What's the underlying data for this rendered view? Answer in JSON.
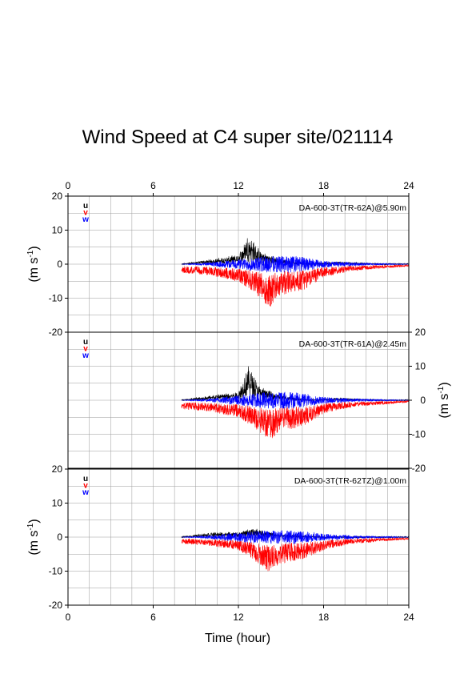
{
  "chart_data": {
    "type": "line",
    "title": "Wind Speed at C4 super site/021114",
    "xlabel": "Time (hour)",
    "xlim": [
      0,
      24
    ],
    "x_ticks": [
      "0",
      "6",
      "12",
      "18",
      "24"
    ],
    "y_ticks": [
      "20",
      "10",
      "0",
      "-10",
      "-20"
    ],
    "ylabel": "(m s-1)",
    "ylabel_main": "(m s",
    "ylabel_sup": "-1",
    "ylabel_close": ")",
    "ylim": [
      -20,
      20
    ],
    "grid": true,
    "legend_position": "top-left",
    "series_names": [
      "u",
      "v",
      "w"
    ],
    "series_colors": {
      "u": "#000000",
      "v": "#ff0000",
      "w": "#0000ff"
    },
    "data_start_hour": 8,
    "panels": [
      {
        "label": "DA-600-3T(TR-62A)@5.90m",
        "y_axis_side": "left",
        "series": [
          {
            "name": "u",
            "x": [
              8,
              10,
              12,
              12.7,
              13.5,
              15,
              17,
              19,
              22,
              24
            ],
            "values": [
              0,
              1,
              2,
              7,
              3,
              1,
              0,
              0.5,
              0,
              0
            ]
          },
          {
            "name": "v",
            "x": [
              8,
              10,
              12,
              13,
              14.2,
              15,
              16.5,
              18,
              20,
              24
            ],
            "values": [
              -2,
              -2.5,
              -4,
              -6,
              -10,
              -7,
              -6,
              -3,
              -1.5,
              -0.5
            ]
          },
          {
            "name": "w",
            "x": [
              8,
              10,
              12,
              14,
              16,
              18,
              20,
              24
            ],
            "values": [
              0,
              0.5,
              1.5,
              2.5,
              2.5,
              1,
              0.5,
              0
            ]
          }
        ]
      },
      {
        "label": "DA-600-3T(TR-61A)@2.45m",
        "y_axis_side": "right",
        "series": [
          {
            "name": "u",
            "x": [
              8,
              10,
              12,
              12.7,
              13.5,
              15,
              17,
              19,
              22,
              24
            ],
            "values": [
              0,
              1,
              2,
              8,
              3,
              1,
              0,
              0.5,
              0,
              0
            ]
          },
          {
            "name": "v",
            "x": [
              8,
              10,
              12,
              13,
              14.2,
              15,
              16.5,
              18,
              20,
              24
            ],
            "values": [
              -2,
              -2.5,
              -4,
              -6,
              -9,
              -7,
              -6,
              -3,
              -1.5,
              -0.5
            ]
          },
          {
            "name": "w",
            "x": [
              8,
              10,
              12,
              14,
              16,
              18,
              20,
              24
            ],
            "values": [
              0,
              0.5,
              1.5,
              2.5,
              2.5,
              1,
              0.5,
              0
            ]
          }
        ]
      },
      {
        "label": "DA-600-3T(TR-62TZ)@1.00m",
        "y_axis_side": "left",
        "series": [
          {
            "name": "u",
            "x": [
              8,
              10,
              12,
              13,
              15,
              18,
              24
            ],
            "values": [
              0,
              1,
              1,
              2,
              0.5,
              0,
              0
            ]
          },
          {
            "name": "v",
            "x": [
              8,
              10,
              12,
              13,
              14.2,
              15,
              16.5,
              18,
              20,
              24
            ],
            "values": [
              -1.5,
              -2,
              -3,
              -5,
              -8,
              -6,
              -5,
              -3,
              -1.5,
              -0.5
            ]
          },
          {
            "name": "w",
            "x": [
              8,
              10,
              12,
              14,
              16,
              18,
              20,
              24
            ],
            "values": [
              0,
              0.5,
              1.5,
              2,
              2,
              1,
              0.5,
              0
            ]
          }
        ]
      }
    ]
  }
}
